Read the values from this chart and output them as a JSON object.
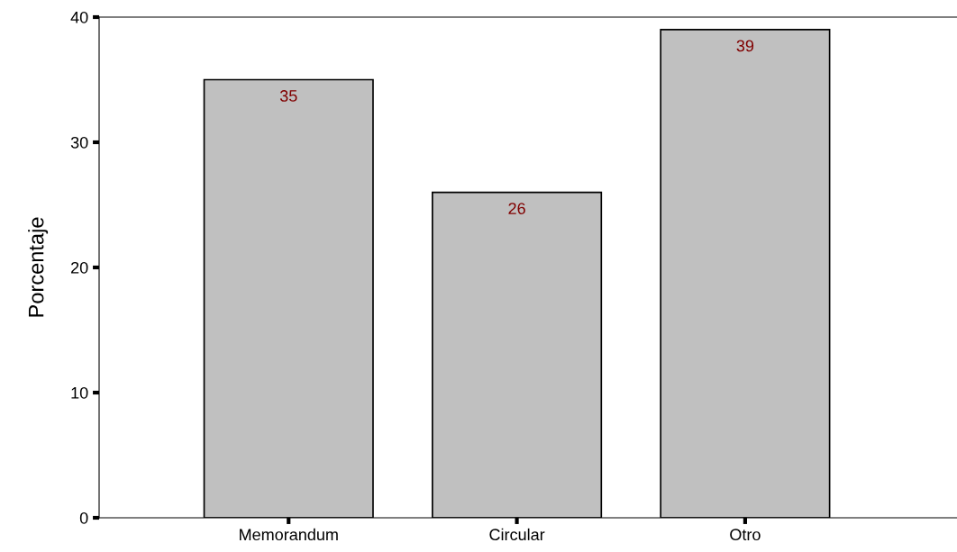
{
  "chart_data": {
    "type": "bar",
    "ylabel": "Porcentaje",
    "categories": [
      "Memorandum",
      "Circular",
      "Otro"
    ],
    "values": [
      35,
      26,
      39
    ],
    "color": "#c0c0c0",
    "ylim": [
      0,
      40
    ],
    "yticks": [
      0,
      10,
      20,
      30,
      40
    ],
    "data_labels": true,
    "grid": false,
    "legend": false
  }
}
